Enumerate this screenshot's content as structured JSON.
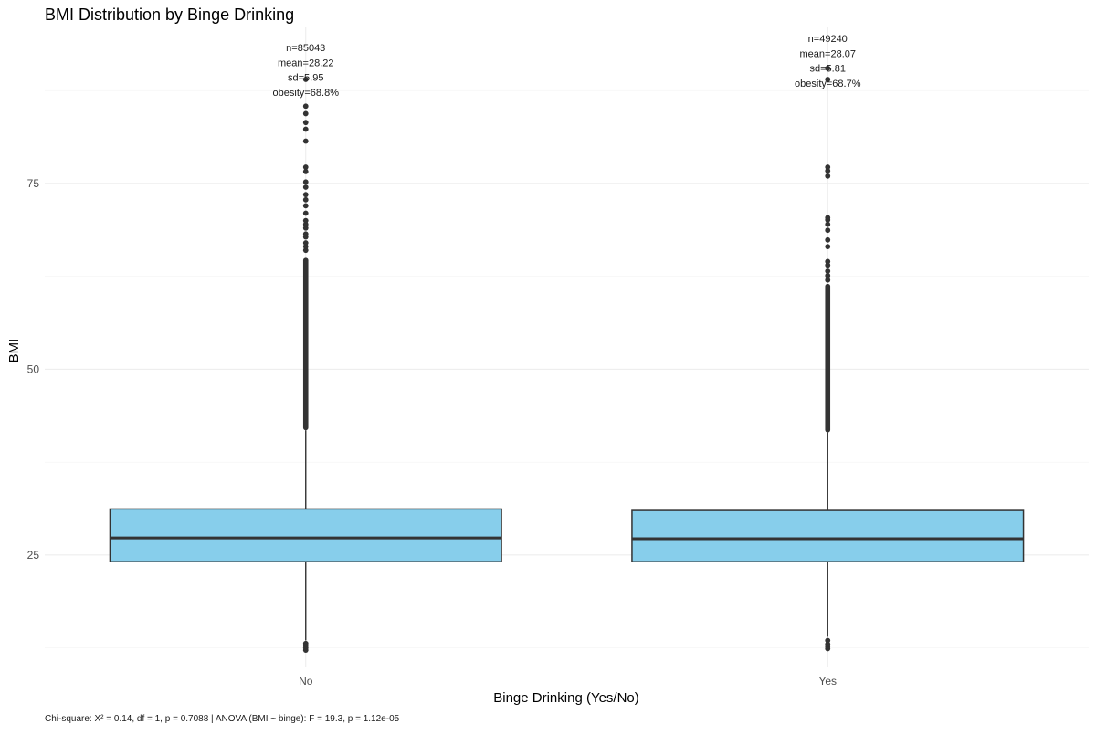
{
  "chart_data": {
    "type": "boxplot",
    "title": "BMI Distribution by Binge Drinking",
    "xlabel": "Binge Drinking (Yes/No)",
    "ylabel": "BMI",
    "ylim": [
      10,
      96
    ],
    "yticks": [
      25,
      50,
      75
    ],
    "y_minor_ticks": [
      12.5,
      37.5,
      62.5,
      87.5
    ],
    "categories": [
      "No",
      "Yes"
    ],
    "box_fill": "#87CEEB",
    "box_stroke": "#333333",
    "grid": true,
    "legend": "none",
    "groups": [
      {
        "category": "No",
        "whisker_low": 13.5,
        "q1": 24.1,
        "median": 27.3,
        "q3": 31.2,
        "whisker_high": 41.8,
        "outliers_high_dense_to": 65,
        "outliers_high": [
          66,
          66.5,
          67,
          67.8,
          68.2,
          69,
          69.5,
          70,
          71,
          72,
          72.8,
          73.5,
          74.5,
          75.2,
          76.6,
          77.2,
          80.7,
          82.3,
          83.2,
          84.4,
          85.4,
          89
        ],
        "outliers_low": [
          12.2,
          12.5,
          12.8,
          13.1
        ],
        "stats": [
          "n=85043",
          "mean=28.22",
          "sd=5.95",
          "obesity=68.8%"
        ]
      },
      {
        "category": "Yes",
        "whisker_low": 14,
        "q1": 24.1,
        "median": 27.2,
        "q3": 31.0,
        "whisker_high": 41.5,
        "outliers_high_dense_to": 61.5,
        "outliers_high": [
          62,
          62.6,
          63.2,
          64,
          64.5,
          66.5,
          67.4,
          68.7,
          69.5,
          70.1,
          70.4,
          76,
          76.7,
          77.2,
          89,
          90.5
        ],
        "outliers_low": [
          12.4,
          12.7,
          13.0,
          13.5
        ],
        "stats": [
          "n=49240",
          "mean=28.07",
          "sd=5.81",
          "obesity=68.7%"
        ]
      }
    ],
    "caption": "Chi-square: X² = 0.14, df = 1, p = 0.7088 | ANOVA (BMI ~ binge): F = 19.3, p = 1.12e-05"
  }
}
